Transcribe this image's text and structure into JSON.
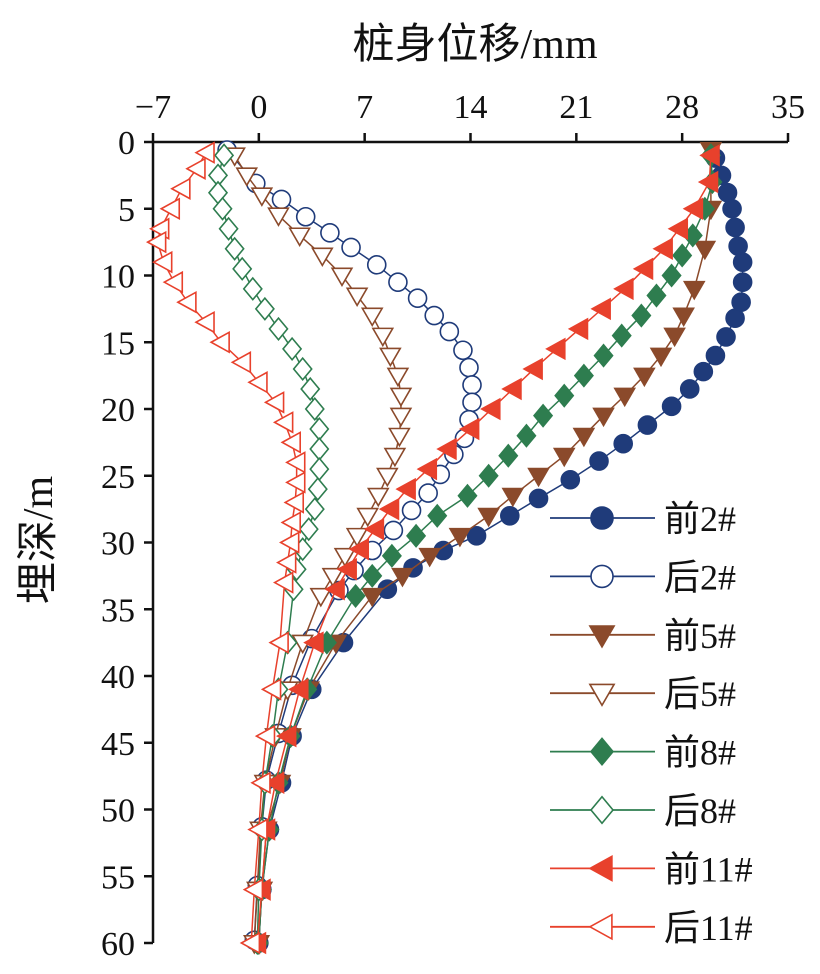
{
  "chart_data": {
    "type": "line",
    "title": "桩身位移/mm",
    "xlabel": "桩身位移/mm",
    "ylabel": "埋深/m",
    "xlim": [
      -7,
      35
    ],
    "ylim": [
      0,
      60
    ],
    "y_inverted": true,
    "x_axis_position": "top",
    "xticks": [
      -7,
      0,
      7,
      14,
      21,
      28,
      35
    ],
    "xtick_labels": [
      "−7",
      "0",
      "7",
      "14",
      "21",
      "28",
      "35"
    ],
    "yticks": [
      0,
      5,
      10,
      15,
      20,
      25,
      30,
      35,
      40,
      45,
      50,
      55,
      60
    ],
    "ytick_labels": [
      "0",
      "5",
      "10",
      "15",
      "20",
      "25",
      "30",
      "35",
      "40",
      "45",
      "50",
      "55",
      "60"
    ],
    "grid": false,
    "legend_position": "bottom-right",
    "series": [
      {
        "name": "前2#",
        "color": "#1f3b7a",
        "marker": "circle",
        "filled": true,
        "depth": [
          1.2,
          2.5,
          3.8,
          5,
          6.4,
          7.8,
          9,
          10.5,
          12,
          13.2,
          14.6,
          16,
          17.2,
          18.5,
          19.8,
          21.2,
          22.6,
          23.9,
          25.3,
          26.7,
          28,
          29.5,
          30.6,
          31.9,
          33.5,
          37.5,
          41,
          44.5,
          48,
          51.5,
          56,
          60
        ],
        "disp": [
          30.2,
          30.6,
          31,
          31.3,
          31.5,
          31.7,
          32,
          32,
          31.9,
          31.5,
          30.9,
          30.2,
          29.4,
          28.5,
          27.3,
          25.7,
          24.1,
          22.5,
          20.6,
          18.5,
          16.6,
          14.4,
          12.2,
          10.2,
          8.5,
          5.6,
          3.5,
          2.2,
          1.5,
          0.7,
          0.2,
          0
        ]
      },
      {
        "name": "后2#",
        "color": "#1f3b7a",
        "marker": "circle",
        "filled": false,
        "depth": [
          0.6,
          3.1,
          4.3,
          5.6,
          6.8,
          7.9,
          9.2,
          10.5,
          11.7,
          13,
          14.2,
          15.6,
          16.9,
          18.2,
          19.5,
          20.8,
          22.2,
          23.4,
          24.9,
          26.3,
          27.6,
          29.1,
          30.6,
          32.1,
          33.6,
          37.2,
          40.7,
          44.3,
          47.8,
          51.3,
          55.7,
          59.8
        ],
        "disp": [
          -2.1,
          -0.2,
          1.5,
          3.1,
          4.7,
          6.1,
          7.8,
          9.2,
          10.5,
          11.6,
          12.6,
          13.5,
          13.9,
          14.1,
          14.1,
          13.9,
          13.6,
          12.9,
          12,
          11.2,
          10.1,
          8.9,
          7.5,
          6.3,
          5.3,
          3.5,
          2.2,
          1.3,
          0.5,
          0.2,
          -0.1,
          -0.3
        ]
      },
      {
        "name": "前5#",
        "color": "#8b4a2b",
        "marker": "triangle-down",
        "filled": true,
        "depth": [
          0.6,
          5,
          8,
          11,
          13,
          14.5,
          16,
          17.5,
          19,
          20.5,
          22,
          23.5,
          25,
          26.5,
          28,
          29.5,
          31,
          32.5,
          34,
          37.5,
          41,
          44.5,
          48,
          51.5,
          56,
          60
        ],
        "disp": [
          29.9,
          29.9,
          29.5,
          28.8,
          28.1,
          27.5,
          26.6,
          25.5,
          24.2,
          22.8,
          21.5,
          20.2,
          18.5,
          16.8,
          15.2,
          13.3,
          11.3,
          9.5,
          7.5,
          5.1,
          3.3,
          2.1,
          1.4,
          0.5,
          0.2,
          0
        ]
      },
      {
        "name": "后5#",
        "color": "#8b4a2b",
        "marker": "triangle-down",
        "filled": false,
        "depth": [
          1,
          2.5,
          4,
          5.5,
          7,
          8.5,
          10,
          11.5,
          13,
          14.5,
          16,
          17.5,
          19,
          20.5,
          22,
          23.5,
          25,
          26.5,
          28,
          29.5,
          31,
          32.5,
          34,
          37.5,
          41,
          44.5,
          48,
          51.5,
          56,
          60
        ],
        "disp": [
          -1.6,
          -0.8,
          0.2,
          1.3,
          2.7,
          4.2,
          5.5,
          6.5,
          7.5,
          8.2,
          8.7,
          9.2,
          9.4,
          9.4,
          9.3,
          9,
          8.5,
          7.9,
          7.2,
          6.5,
          5.7,
          4.9,
          4.1,
          2.9,
          1.9,
          1.1,
          0.4,
          0.1,
          -0.1,
          -0.3
        ]
      },
      {
        "name": "前8#",
        "color": "#2e7d4f",
        "marker": "diamond",
        "filled": true,
        "depth": [
          1,
          3,
          5,
          7,
          8.5,
          10,
          11.5,
          13,
          14.5,
          16,
          17.5,
          19,
          20.5,
          22,
          23.5,
          25,
          26.5,
          28,
          29.5,
          31,
          32.5,
          34,
          37.5,
          41,
          44.5,
          48,
          51.5,
          56,
          60
        ],
        "disp": [
          29.9,
          30,
          29.5,
          28.7,
          28,
          27.3,
          26.3,
          25.3,
          24,
          22.8,
          21.5,
          20.2,
          18.8,
          17.7,
          16.5,
          15.2,
          13.8,
          11.8,
          10.4,
          8.8,
          7.5,
          6.4,
          4.5,
          3.2,
          2.1,
          1.3,
          0.7,
          0.2,
          0
        ]
      },
      {
        "name": "后8#",
        "color": "#2e7d4f",
        "marker": "diamond",
        "filled": false,
        "depth": [
          1,
          2.5,
          3.8,
          5,
          6.5,
          8,
          9.5,
          11,
          12.5,
          14,
          15.5,
          17,
          18.5,
          20,
          21.5,
          23,
          24.5,
          26,
          27.5,
          29,
          30.5,
          32,
          33.5,
          37.5,
          41,
          44.5,
          48,
          51.5,
          56,
          60
        ],
        "disp": [
          -2.3,
          -2.7,
          -2.7,
          -2.4,
          -2,
          -1.6,
          -1.1,
          -0.4,
          0.4,
          1.3,
          2.2,
          2.9,
          3.4,
          3.7,
          4,
          4,
          4,
          3.9,
          3.7,
          3.3,
          2.9,
          2.5,
          2.3,
          1.9,
          1.3,
          0.9,
          0.4,
          0.2,
          0,
          -0.1
        ]
      },
      {
        "name": "前11#",
        "color": "#e8412c",
        "marker": "triangle-left",
        "filled": true,
        "depth": [
          1,
          3,
          5,
          6.5,
          8,
          9.5,
          11,
          12.5,
          14,
          15.5,
          17,
          18.5,
          20,
          21.5,
          23,
          24.5,
          26,
          27.5,
          29,
          30.5,
          32,
          33.5,
          37.5,
          41,
          44.5,
          48,
          51.5,
          56,
          60
        ],
        "disp": [
          29.9,
          29.8,
          28.8,
          27.8,
          26.8,
          25.5,
          24.2,
          22.7,
          21.2,
          19.7,
          18.2,
          16.8,
          15.4,
          14,
          12.5,
          11.2,
          9.8,
          8.7,
          7.7,
          6.7,
          5.9,
          5.1,
          3.7,
          2.7,
          1.9,
          1.1,
          0.5,
          0.2,
          -0.1
        ]
      },
      {
        "name": "后11#",
        "color": "#e8412c",
        "marker": "triangle-left",
        "filled": false,
        "depth": [
          0.8,
          2,
          3.5,
          5,
          6.5,
          7.5,
          9,
          10.5,
          12,
          13.5,
          15,
          16.5,
          18,
          19.5,
          21,
          22.5,
          24,
          25.5,
          27,
          28.5,
          30,
          31.5,
          33,
          37.5,
          41,
          44.5,
          48,
          51.5,
          56,
          60
        ],
        "disp": [
          -3.5,
          -4.1,
          -5.1,
          -5.8,
          -6.5,
          -6.7,
          -6.3,
          -5.6,
          -4.7,
          -3.5,
          -2.5,
          -1.1,
          0,
          1.1,
          1.7,
          2.2,
          2.5,
          2.5,
          2.4,
          2.2,
          2.1,
          1.9,
          1.7,
          1.4,
          0.9,
          0.5,
          0.2,
          0,
          -0.3,
          -0.5
        ]
      }
    ]
  }
}
